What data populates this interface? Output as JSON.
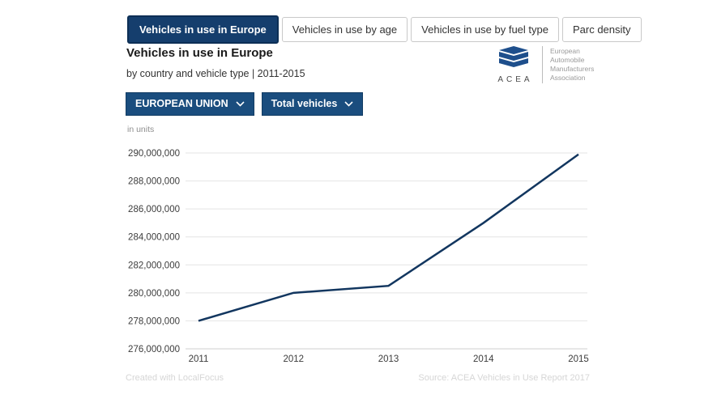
{
  "tabs": [
    {
      "label": "Vehicles in use in Europe",
      "active": true
    },
    {
      "label": "Vehicles in use by age",
      "active": false
    },
    {
      "label": "Vehicles in use by fuel type",
      "active": false
    },
    {
      "label": "Parc density",
      "active": false
    }
  ],
  "header": {
    "title": "Vehicles in use in Europe",
    "subtitle": "by country and vehicle type | 2011-2015"
  },
  "logo": {
    "acronym": "ACEA",
    "association_lines": [
      "European",
      "Automobile",
      "Manufacturers",
      "Association"
    ]
  },
  "filters": {
    "region": "EUROPEAN UNION",
    "vehicle_type": "Total vehicles",
    "chevron_icon": "chevron-down"
  },
  "chart_data": {
    "type": "line",
    "title": "Vehicles in use in Europe",
    "units_label": "in units",
    "x": [
      "2011",
      "2012",
      "2013",
      "2014",
      "2015"
    ],
    "values": [
      278000000,
      280000000,
      280500000,
      285000000,
      289900000
    ],
    "series_name": "Total vehicles, European Union",
    "ylim": [
      276000000,
      290000000
    ],
    "ytick_step": 2000000,
    "yticks": [
      "276,000,000",
      "278,000,000",
      "280,000,000",
      "282,000,000",
      "284,000,000",
      "286,000,000",
      "288,000,000",
      "290,000,000"
    ],
    "grid": true,
    "legend": "none",
    "line_color": "#12365f"
  },
  "footer": {
    "credit": "Created with LocalFocus",
    "source": "Source: ACEA Vehicles in Use Report 2017"
  },
  "colors": {
    "accent_navy": "#153e6d",
    "button_navy": "#1a4d7e",
    "grid": "#e4e4e4",
    "axis": "#cfcfcf",
    "tick_text": "#3c3c3c",
    "footer_text": "#d6d6d6",
    "logo_blue": "#1e4f8c"
  }
}
